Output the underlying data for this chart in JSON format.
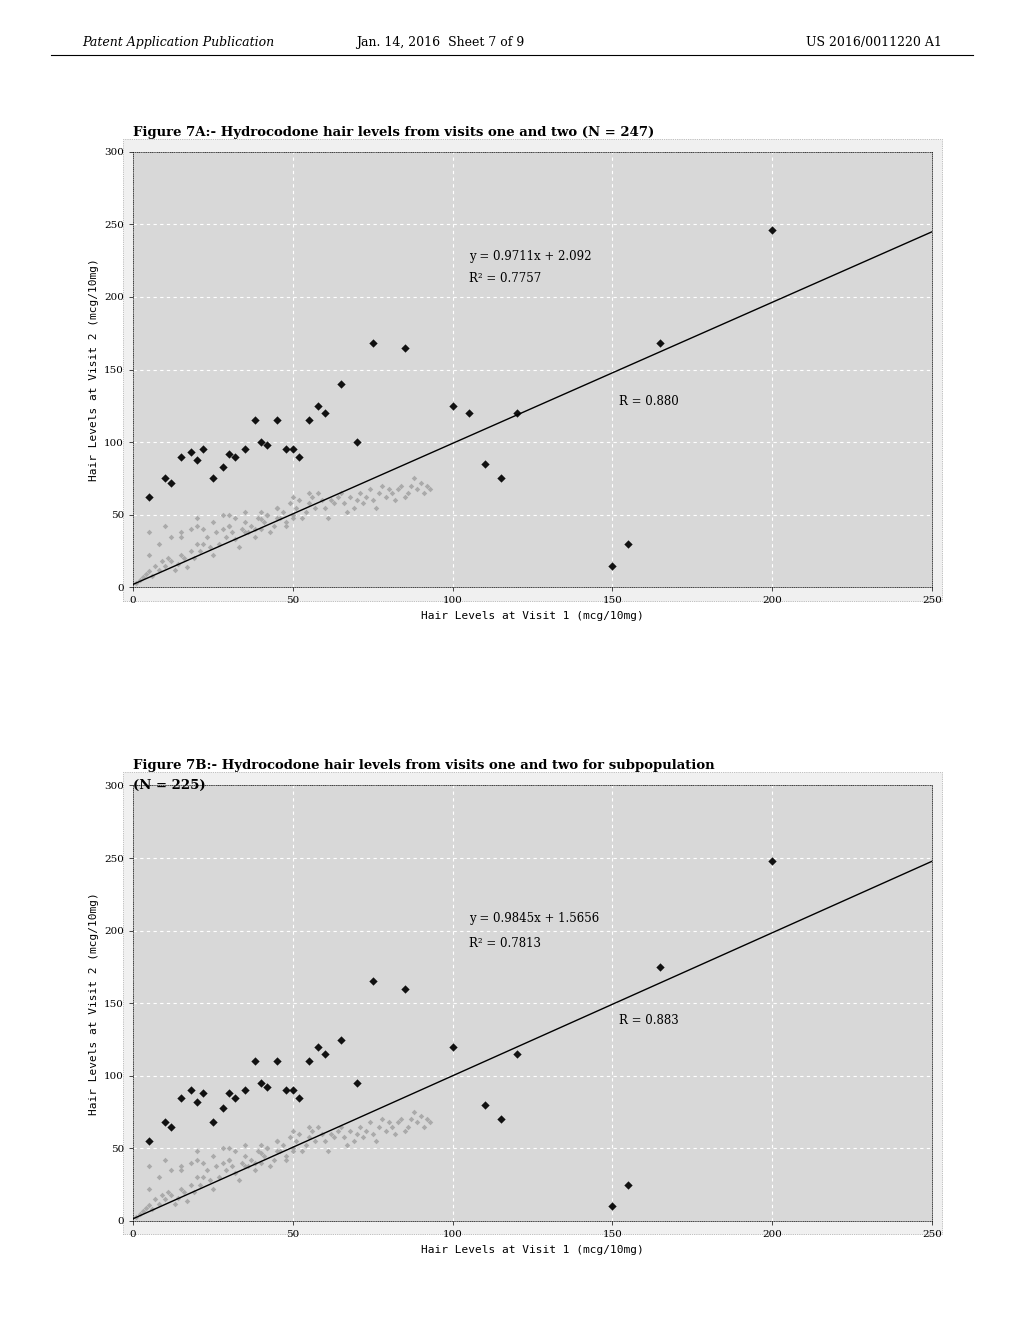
{
  "fig_title_A": "Figure 7A:- Hydrocodone hair levels from visits one and two (N = 247)",
  "fig_title_B1": "Figure 7B:- Hydrocodone hair levels from visits one and two for subpopulation",
  "fig_title_B2": "(N = 225)",
  "xlabel": "Hair Levels at Visit 1 (mcg/10mg)",
  "ylabel": "Hair Levels at Visit 2 (mcg/10mg)",
  "xlim": [
    0,
    250
  ],
  "ylim": [
    0,
    300
  ],
  "xticks": [
    0,
    50,
    100,
    150,
    200,
    250
  ],
  "yticks": [
    0,
    50,
    100,
    150,
    200,
    250,
    300
  ],
  "equation_A": "y = 0.9711x + 2.092",
  "r2_A": "R² = 0.7757",
  "r_A": "R = 0.880",
  "slope_A": 0.9711,
  "intercept_A": 2.092,
  "equation_B": "y = 0.9845x + 1.5656",
  "r2_B": "R² = 0.7813",
  "r_B": "R = 0.883",
  "slope_B": 0.9845,
  "intercept_B": 1.5656,
  "scatter_dark_A": [
    [
      5,
      62
    ],
    [
      10,
      75
    ],
    [
      12,
      72
    ],
    [
      15,
      90
    ],
    [
      18,
      93
    ],
    [
      20,
      88
    ],
    [
      22,
      95
    ],
    [
      25,
      75
    ],
    [
      28,
      83
    ],
    [
      30,
      92
    ],
    [
      32,
      90
    ],
    [
      35,
      95
    ],
    [
      38,
      115
    ],
    [
      40,
      100
    ],
    [
      42,
      98
    ],
    [
      45,
      115
    ],
    [
      48,
      95
    ],
    [
      50,
      95
    ],
    [
      52,
      90
    ],
    [
      55,
      115
    ],
    [
      58,
      125
    ],
    [
      60,
      120
    ],
    [
      65,
      140
    ],
    [
      70,
      100
    ],
    [
      75,
      168
    ],
    [
      85,
      165
    ],
    [
      100,
      125
    ],
    [
      105,
      120
    ],
    [
      110,
      85
    ],
    [
      115,
      75
    ],
    [
      120,
      120
    ],
    [
      150,
      15
    ],
    [
      155,
      30
    ],
    [
      165,
      168
    ],
    [
      200,
      246
    ]
  ],
  "scatter_gray_A": [
    [
      1,
      3
    ],
    [
      2,
      5
    ],
    [
      3,
      7
    ],
    [
      4,
      9
    ],
    [
      5,
      11
    ],
    [
      5,
      22
    ],
    [
      6,
      8
    ],
    [
      7,
      15
    ],
    [
      8,
      12
    ],
    [
      9,
      18
    ],
    [
      10,
      15
    ],
    [
      11,
      20
    ],
    [
      12,
      18
    ],
    [
      13,
      12
    ],
    [
      14,
      16
    ],
    [
      15,
      22
    ],
    [
      15,
      35
    ],
    [
      16,
      20
    ],
    [
      17,
      14
    ],
    [
      18,
      25
    ],
    [
      19,
      20
    ],
    [
      20,
      30
    ],
    [
      20,
      42
    ],
    [
      21,
      25
    ],
    [
      22,
      30
    ],
    [
      23,
      35
    ],
    [
      24,
      28
    ],
    [
      25,
      22
    ],
    [
      26,
      38
    ],
    [
      27,
      30
    ],
    [
      28,
      40
    ],
    [
      29,
      35
    ],
    [
      30,
      42
    ],
    [
      30,
      50
    ],
    [
      31,
      38
    ],
    [
      32,
      33
    ],
    [
      33,
      28
    ],
    [
      34,
      40
    ],
    [
      35,
      45
    ],
    [
      35,
      38
    ],
    [
      36,
      38
    ],
    [
      37,
      42
    ],
    [
      38,
      35
    ],
    [
      39,
      48
    ],
    [
      40,
      40
    ],
    [
      40,
      52
    ],
    [
      41,
      45
    ],
    [
      42,
      50
    ],
    [
      43,
      38
    ],
    [
      44,
      42
    ],
    [
      45,
      55
    ],
    [
      45,
      48
    ],
    [
      46,
      48
    ],
    [
      47,
      52
    ],
    [
      48,
      45
    ],
    [
      49,
      58
    ],
    [
      50,
      50
    ],
    [
      50,
      62
    ],
    [
      51,
      55
    ],
    [
      52,
      60
    ],
    [
      53,
      48
    ],
    [
      54,
      52
    ],
    [
      55,
      58
    ],
    [
      55,
      65
    ],
    [
      56,
      62
    ],
    [
      57,
      55
    ],
    [
      58,
      65
    ],
    [
      59,
      60
    ],
    [
      60,
      55
    ],
    [
      61,
      48
    ],
    [
      62,
      60
    ],
    [
      63,
      58
    ],
    [
      64,
      62
    ],
    [
      65,
      65
    ],
    [
      66,
      58
    ],
    [
      67,
      52
    ],
    [
      68,
      62
    ],
    [
      69,
      55
    ],
    [
      70,
      60
    ],
    [
      71,
      65
    ],
    [
      72,
      58
    ],
    [
      73,
      62
    ],
    [
      74,
      68
    ],
    [
      75,
      60
    ],
    [
      76,
      55
    ],
    [
      77,
      65
    ],
    [
      78,
      70
    ],
    [
      79,
      62
    ],
    [
      80,
      68
    ],
    [
      81,
      65
    ],
    [
      82,
      60
    ],
    [
      83,
      68
    ],
    [
      84,
      70
    ],
    [
      85,
      62
    ],
    [
      86,
      65
    ],
    [
      87,
      70
    ],
    [
      88,
      75
    ],
    [
      89,
      68
    ],
    [
      90,
      72
    ],
    [
      91,
      65
    ],
    [
      92,
      70
    ],
    [
      93,
      68
    ],
    [
      5,
      38
    ],
    [
      8,
      30
    ],
    [
      10,
      42
    ],
    [
      12,
      35
    ],
    [
      15,
      38
    ],
    [
      18,
      40
    ],
    [
      20,
      48
    ],
    [
      22,
      40
    ],
    [
      25,
      45
    ],
    [
      28,
      50
    ],
    [
      30,
      42
    ],
    [
      32,
      48
    ],
    [
      35,
      52
    ],
    [
      38,
      40
    ],
    [
      40,
      47
    ],
    [
      42,
      50
    ],
    [
      45,
      55
    ],
    [
      48,
      42
    ],
    [
      50,
      48
    ]
  ],
  "scatter_dark_B": [
    [
      5,
      55
    ],
    [
      10,
      68
    ],
    [
      12,
      65
    ],
    [
      15,
      85
    ],
    [
      18,
      90
    ],
    [
      20,
      82
    ],
    [
      22,
      88
    ],
    [
      25,
      68
    ],
    [
      28,
      78
    ],
    [
      30,
      88
    ],
    [
      32,
      85
    ],
    [
      35,
      90
    ],
    [
      38,
      110
    ],
    [
      40,
      95
    ],
    [
      42,
      92
    ],
    [
      45,
      110
    ],
    [
      48,
      90
    ],
    [
      50,
      90
    ],
    [
      52,
      85
    ],
    [
      55,
      110
    ],
    [
      58,
      120
    ],
    [
      60,
      115
    ],
    [
      65,
      125
    ],
    [
      70,
      95
    ],
    [
      75,
      165
    ],
    [
      85,
      160
    ],
    [
      100,
      120
    ],
    [
      110,
      80
    ],
    [
      115,
      70
    ],
    [
      120,
      115
    ],
    [
      150,
      10
    ],
    [
      155,
      25
    ],
    [
      165,
      175
    ],
    [
      200,
      248
    ]
  ],
  "scatter_gray_B": [
    [
      1,
      3
    ],
    [
      2,
      5
    ],
    [
      3,
      7
    ],
    [
      4,
      9
    ],
    [
      5,
      11
    ],
    [
      5,
      22
    ],
    [
      6,
      8
    ],
    [
      7,
      15
    ],
    [
      8,
      12
    ],
    [
      9,
      18
    ],
    [
      10,
      15
    ],
    [
      11,
      20
    ],
    [
      12,
      18
    ],
    [
      13,
      12
    ],
    [
      14,
      16
    ],
    [
      15,
      22
    ],
    [
      15,
      35
    ],
    [
      16,
      20
    ],
    [
      17,
      14
    ],
    [
      18,
      25
    ],
    [
      19,
      20
    ],
    [
      20,
      30
    ],
    [
      20,
      42
    ],
    [
      21,
      25
    ],
    [
      22,
      30
    ],
    [
      23,
      35
    ],
    [
      24,
      28
    ],
    [
      25,
      22
    ],
    [
      26,
      38
    ],
    [
      27,
      30
    ],
    [
      28,
      40
    ],
    [
      29,
      35
    ],
    [
      30,
      42
    ],
    [
      30,
      50
    ],
    [
      31,
      38
    ],
    [
      32,
      33
    ],
    [
      33,
      28
    ],
    [
      34,
      40
    ],
    [
      35,
      45
    ],
    [
      35,
      38
    ],
    [
      36,
      38
    ],
    [
      37,
      42
    ],
    [
      38,
      35
    ],
    [
      39,
      48
    ],
    [
      40,
      40
    ],
    [
      40,
      52
    ],
    [
      41,
      45
    ],
    [
      42,
      50
    ],
    [
      43,
      38
    ],
    [
      44,
      42
    ],
    [
      45,
      55
    ],
    [
      45,
      48
    ],
    [
      46,
      48
    ],
    [
      47,
      52
    ],
    [
      48,
      45
    ],
    [
      49,
      58
    ],
    [
      50,
      50
    ],
    [
      50,
      62
    ],
    [
      51,
      55
    ],
    [
      52,
      60
    ],
    [
      53,
      48
    ],
    [
      54,
      52
    ],
    [
      55,
      58
    ],
    [
      55,
      65
    ],
    [
      56,
      62
    ],
    [
      57,
      55
    ],
    [
      58,
      65
    ],
    [
      59,
      60
    ],
    [
      60,
      55
    ],
    [
      61,
      48
    ],
    [
      62,
      60
    ],
    [
      63,
      58
    ],
    [
      64,
      62
    ],
    [
      65,
      65
    ],
    [
      66,
      58
    ],
    [
      67,
      52
    ],
    [
      68,
      62
    ],
    [
      69,
      55
    ],
    [
      70,
      60
    ],
    [
      71,
      65
    ],
    [
      72,
      58
    ],
    [
      73,
      62
    ],
    [
      74,
      68
    ],
    [
      75,
      60
    ],
    [
      76,
      55
    ],
    [
      77,
      65
    ],
    [
      78,
      70
    ],
    [
      79,
      62
    ],
    [
      80,
      68
    ],
    [
      81,
      65
    ],
    [
      82,
      60
    ],
    [
      83,
      68
    ],
    [
      84,
      70
    ],
    [
      85,
      62
    ],
    [
      86,
      65
    ],
    [
      87,
      70
    ],
    [
      88,
      75
    ],
    [
      89,
      68
    ],
    [
      90,
      72
    ],
    [
      91,
      65
    ],
    [
      92,
      70
    ],
    [
      93,
      68
    ],
    [
      5,
      38
    ],
    [
      8,
      30
    ],
    [
      10,
      42
    ],
    [
      12,
      35
    ],
    [
      15,
      38
    ],
    [
      18,
      40
    ],
    [
      20,
      48
    ],
    [
      22,
      40
    ],
    [
      25,
      45
    ],
    [
      28,
      50
    ],
    [
      30,
      42
    ],
    [
      32,
      48
    ],
    [
      35,
      52
    ],
    [
      38,
      40
    ],
    [
      40,
      47
    ],
    [
      42,
      50
    ],
    [
      45,
      55
    ],
    [
      48,
      42
    ],
    [
      50,
      48
    ]
  ],
  "background_color": "#ffffff",
  "plot_bg_color": "#d8d8d8",
  "outer_bg_color": "#f0f0f0",
  "grid_color": "#ffffff",
  "dark_marker_color": "#111111",
  "gray_marker_color": "#aaaaaa",
  "line_color": "#000000",
  "header_text_left": "Patent Application Publication",
  "header_text_mid": "Jan. 14, 2016  Sheet 7 of 9",
  "header_text_right": "US 2016/0011220 A1"
}
